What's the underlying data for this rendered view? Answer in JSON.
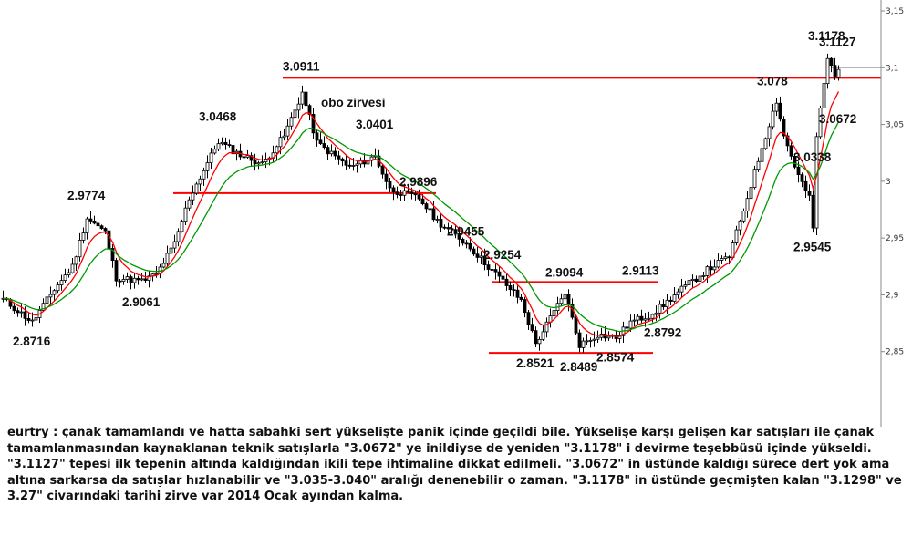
{
  "chart_data": {
    "type": "candlestick",
    "instrument": "eurtry",
    "ylim": [
      2.8,
      3.15
    ],
    "y_ticks": [
      "2,85",
      "2,9",
      "2,95",
      "3",
      "3,05",
      "3,1",
      "3,15"
    ],
    "y_tick_values": [
      2.85,
      2.9,
      2.95,
      3.0,
      3.05,
      3.1,
      3.15
    ],
    "current_price": 3.1001,
    "colors": {
      "candle": "#000000",
      "ma_fast": "#ff0000",
      "ma_slow": "#009900",
      "level": "#ff0000",
      "current": "#888888"
    },
    "levels": [
      {
        "name": "obo-neckline",
        "value": 3.0911
      },
      {
        "name": "support-2.9896",
        "value": 2.9896
      },
      {
        "name": "resistance-2.9113",
        "value": 2.9113
      },
      {
        "name": "bowl-bottom",
        "value": 2.8489
      }
    ],
    "pivots": [
      {
        "label": "2.8716",
        "index": 8,
        "value": 2.8716,
        "pos": "below"
      },
      {
        "label": "2.9774",
        "index": 23,
        "value": 2.9774,
        "pos": "above"
      },
      {
        "label": "2.9061",
        "index": 38,
        "value": 2.9061,
        "pos": "below"
      },
      {
        "label": "3.0468",
        "index": 59,
        "value": 3.0468,
        "pos": "above"
      },
      {
        "label": "3.0911",
        "index": 82,
        "value": 3.0911,
        "pos": "above"
      },
      {
        "label": "3.0401",
        "index": 102,
        "value": 3.0401,
        "pos": "above"
      },
      {
        "label": "2.9896",
        "index": 114,
        "value": 2.9896,
        "pos": "above"
      },
      {
        "label": "2.9455",
        "index": 127,
        "value": 2.9455,
        "pos": "above"
      },
      {
        "label": "2.9254",
        "index": 137,
        "value": 2.9254,
        "pos": "above"
      },
      {
        "label": "2.9094",
        "index": 154,
        "value": 2.9094,
        "pos": "above"
      },
      {
        "label": "2.9113",
        "index": 175,
        "value": 2.9113,
        "pos": "above"
      },
      {
        "label": "2.8521",
        "index": 146,
        "value": 2.8521,
        "pos": "below"
      },
      {
        "label": "2.8489",
        "index": 158,
        "value": 2.8489,
        "pos": "below"
      },
      {
        "label": "2.8574",
        "index": 168,
        "value": 2.8574,
        "pos": "below"
      },
      {
        "label": "2.8792",
        "index": 181,
        "value": 2.8792,
        "pos": "below"
      },
      {
        "label": "3.078",
        "index": 212,
        "value": 3.078,
        "pos": "above"
      },
      {
        "label": "3.0338",
        "index": 222,
        "value": 3.0338,
        "pos": "below"
      },
      {
        "label": "2.9545",
        "index": 222,
        "value": 2.9545,
        "pos": "below"
      },
      {
        "label": "3.1178",
        "index": 226,
        "value": 3.1178,
        "pos": "above"
      },
      {
        "label": "3.1127",
        "index": 229,
        "value": 3.1127,
        "pos": "above"
      },
      {
        "label": "3.0672",
        "index": 229,
        "value": 3.0672,
        "pos": "below"
      }
    ],
    "text_annotations": [
      {
        "text": "obo zirvesi",
        "index": 90,
        "value": 3.0835
      }
    ],
    "anchors": [
      [
        0,
        2.896
      ],
      [
        8,
        2.876
      ],
      [
        14,
        2.905
      ],
      [
        19,
        2.925
      ],
      [
        23,
        2.968
      ],
      [
        28,
        2.955
      ],
      [
        31,
        2.915
      ],
      [
        38,
        2.912
      ],
      [
        42,
        2.918
      ],
      [
        47,
        2.945
      ],
      [
        51,
        2.985
      ],
      [
        59,
        3.035
      ],
      [
        64,
        3.025
      ],
      [
        71,
        3.015
      ],
      [
        77,
        3.04
      ],
      [
        82,
        3.078
      ],
      [
        86,
        3.034
      ],
      [
        95,
        3.012
      ],
      [
        102,
        3.022
      ],
      [
        106,
        2.993
      ],
      [
        114,
        2.985
      ],
      [
        119,
        2.965
      ],
      [
        127,
        2.945
      ],
      [
        133,
        2.925
      ],
      [
        137,
        2.912
      ],
      [
        142,
        2.895
      ],
      [
        146,
        2.857
      ],
      [
        151,
        2.885
      ],
      [
        154,
        2.902
      ],
      [
        158,
        2.856
      ],
      [
        163,
        2.865
      ],
      [
        168,
        2.862
      ],
      [
        172,
        2.876
      ],
      [
        177,
        2.882
      ],
      [
        181,
        2.891
      ],
      [
        186,
        2.905
      ],
      [
        193,
        2.922
      ],
      [
        199,
        2.934
      ],
      [
        203,
        2.975
      ],
      [
        208,
        3.03
      ],
      [
        212,
        3.071
      ],
      [
        214,
        3.04
      ],
      [
        218,
        3.005
      ],
      [
        221,
        2.985
      ],
      [
        222,
        2.958
      ],
      [
        223,
        3.04
      ],
      [
        226,
        3.108
      ],
      [
        228,
        3.094
      ],
      [
        229,
        3.1
      ]
    ]
  },
  "commentary": "eurtry : çanak tamamlandı ve hatta sabahki sert yükselişte panik içinde geçildi bile. Yükselişe karşı gelişen kar satışları ile çanak tamamlanmasından kaynaklanan teknik satışlarla \"3.0672\" ye inildiyse de yeniden \"3.1178\" i devirme teşebbüsü içinde yükseldi. \"3.1127\" tepesi ilk tepenin altında kaldığından ikili tepe ihtimaline dikkat edilmeli. \"3.0672\" in üstünde kaldığı sürece dert yok ama altına sarkarsa da satışlar hızlanabilir ve \"3.035-3.040\" aralığı denenebilir o zaman. \"3.1178\" in üstünde geçmişten kalan \"3.1298\" ve 3.27\" civarındaki tarihi zirve var 2014 Ocak ayından kalma."
}
